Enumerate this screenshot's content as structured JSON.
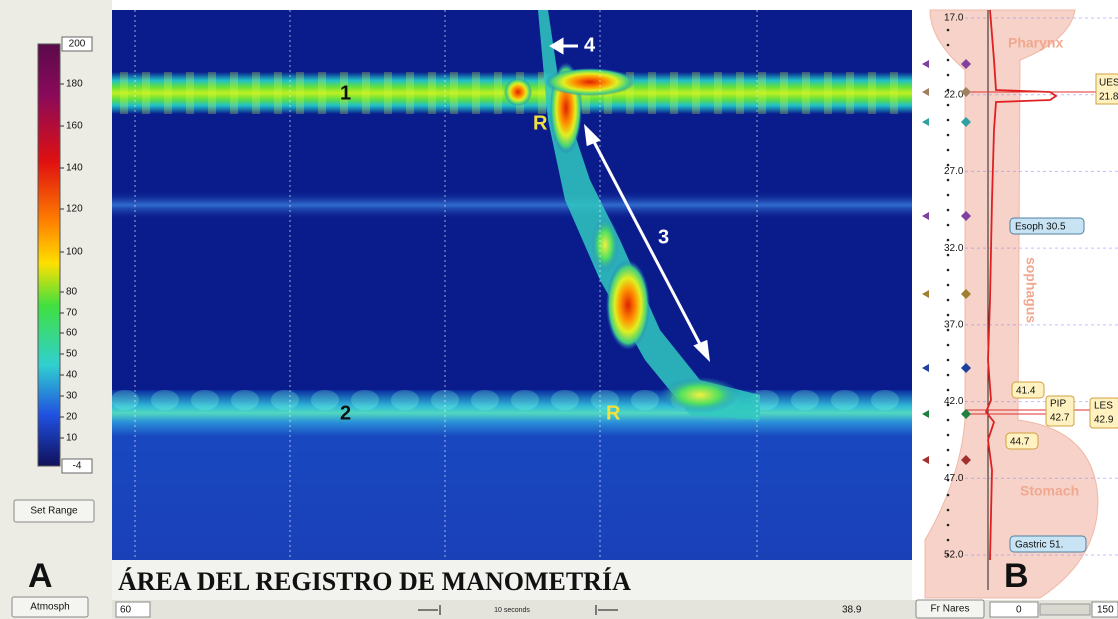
{
  "color_scale": {
    "max": "200",
    "labels": [
      "180",
      "160",
      "140",
      "120",
      "100",
      "80",
      "70",
      "60",
      "50",
      "40",
      "30",
      "20",
      "10"
    ],
    "min": "-4"
  },
  "left_panel": {
    "set_range_button": "Set Range",
    "panel_letter": "A",
    "atmosph_button": "Atmosph"
  },
  "plot": {
    "annotations": {
      "band_1": "1",
      "band_2": "2",
      "arrow_3": "3",
      "arrow_4": "4",
      "r_upper": "R",
      "r_lower": "R"
    },
    "caption": "ÁREA DEL REGISTRO DE MANOMETRÍA"
  },
  "bottom_bar": {
    "left_value": "60",
    "time_scale": "10 seconds",
    "right_value": "38.9",
    "nares_button": "Fr Nares",
    "range_min": "0",
    "range_max": "150"
  },
  "right_panel": {
    "position_labels": [
      "17.0",
      "22.0",
      "27.0",
      "32.0",
      "37.0",
      "42.0",
      "47.0",
      "52.0"
    ],
    "region_labels": {
      "pharynx": "Pharynx",
      "esophagus": "sophagus",
      "stomach": "Stomach"
    },
    "markers": {
      "ues": {
        "name": "UES",
        "value": "21.8"
      },
      "esoph": "Esoph 30.5",
      "upper_les_edge": "41.4",
      "pip": {
        "name": "PIP",
        "value": "42.7"
      },
      "les": {
        "name": "LES",
        "value": "42.9"
      },
      "lower_les_edge": "44.7",
      "gastric": "Gastric 51."
    },
    "panel_letter": "B"
  }
}
